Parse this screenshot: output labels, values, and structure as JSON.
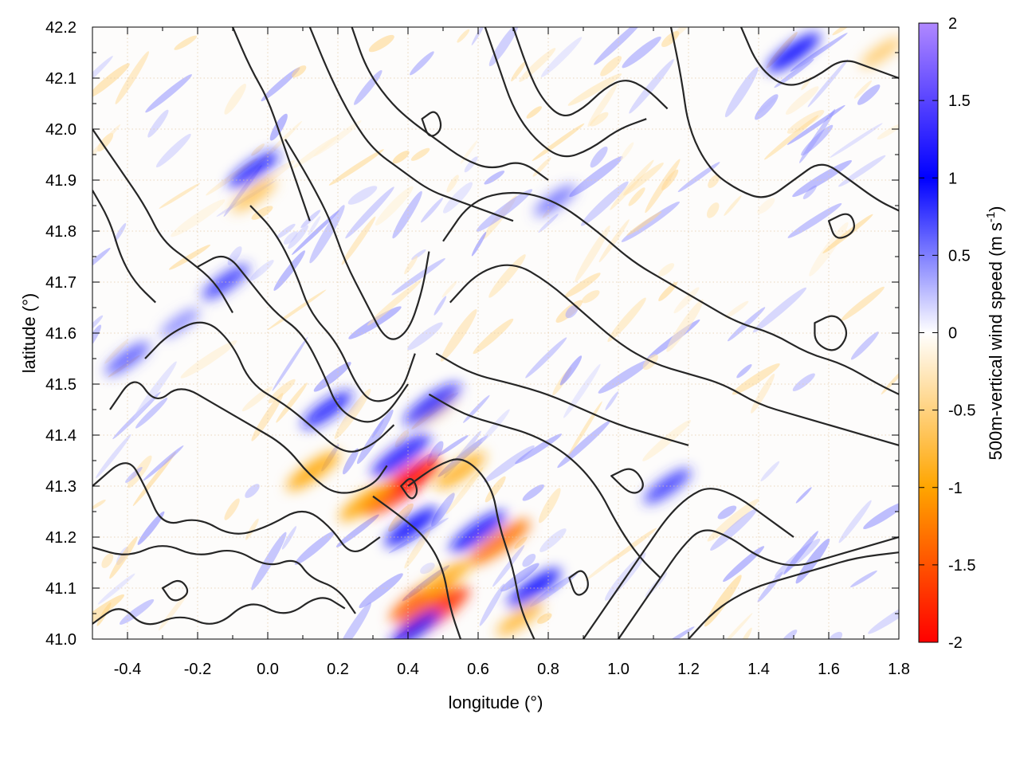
{
  "chart_data": {
    "type": "heatmap",
    "xlabel": "longitude (°)",
    "ylabel": "latitude (°)",
    "colorbar_label": "500m-vertical wind speed (m s",
    "colorbar_unit_sup": "-1",
    "colorbar_label_end": ")",
    "xlim": [
      -0.5,
      1.8
    ],
    "ylim": [
      41.0,
      42.2
    ],
    "xticks": [
      -0.4,
      -0.2,
      0.0,
      0.2,
      0.4,
      0.6,
      0.8,
      1.0,
      1.2,
      1.4,
      1.6,
      1.8
    ],
    "xtick_labels": [
      "-0.4",
      "-0.2",
      "0.0",
      "0.2",
      "0.4",
      "0.6",
      "0.8",
      "1.0",
      "1.2",
      "1.4",
      "1.6",
      "1.8"
    ],
    "yticks": [
      41.0,
      41.1,
      41.2,
      41.3,
      41.4,
      41.5,
      41.6,
      41.7,
      41.8,
      41.9,
      42.0,
      42.1,
      42.2
    ],
    "ytick_labels": [
      "41.0",
      "41.1",
      "41.2",
      "41.3",
      "41.4",
      "41.5",
      "41.6",
      "41.7",
      "41.8",
      "41.9",
      "42.0",
      "42.1",
      "42.2"
    ],
    "colorbar_range": [
      -2,
      2
    ],
    "colorbar_ticks": [
      -2,
      -1.5,
      -1,
      -0.5,
      0,
      0.5,
      1,
      1.5,
      2
    ],
    "colorbar_tick_labels": [
      "-2",
      "-1.5",
      "-1",
      "-0.5",
      "0",
      "0.5",
      "1",
      "1.5",
      "2"
    ],
    "colormap": [
      {
        "value": -2,
        "color": "#ff0000"
      },
      {
        "value": -1,
        "color": "#ffa500"
      },
      {
        "value": 0,
        "color": "#ffffff"
      },
      {
        "value": 1,
        "color": "#0000ff"
      },
      {
        "value": 2,
        "color": "#b088ff"
      }
    ],
    "grid": true,
    "wind_features": [
      {
        "lon": 0.38,
        "lat": 41.3,
        "w": -1.9
      },
      {
        "lon": 0.47,
        "lat": 41.05,
        "w": -1.7
      },
      {
        "lon": 0.44,
        "lat": 41.08,
        "w": -1.4
      },
      {
        "lon": 0.66,
        "lat": 41.19,
        "w": -1.3
      },
      {
        "lon": 0.13,
        "lat": 41.33,
        "w": -1.0
      },
      {
        "lon": 0.28,
        "lat": 41.27,
        "w": -1.0
      },
      {
        "lon": 0.55,
        "lat": 41.33,
        "w": -0.9
      },
      {
        "lon": 0.51,
        "lat": 41.12,
        "w": -0.9
      },
      {
        "lon": -0.04,
        "lat": 41.87,
        "w": -0.7
      },
      {
        "lon": 0.48,
        "lat": 41.45,
        "w": -0.6
      },
      {
        "lon": 0.72,
        "lat": 41.04,
        "w": -0.8
      },
      {
        "lon": 1.75,
        "lat": 42.15,
        "w": -0.6
      },
      {
        "lon": 0.38,
        "lat": 41.36,
        "w": 1.2
      },
      {
        "lon": 0.47,
        "lat": 41.46,
        "w": 1.1
      },
      {
        "lon": 0.6,
        "lat": 41.21,
        "w": 1.1
      },
      {
        "lon": 0.76,
        "lat": 41.1,
        "w": 1.0
      },
      {
        "lon": 0.41,
        "lat": 41.22,
        "w": 1.0
      },
      {
        "lon": 0.17,
        "lat": 41.45,
        "w": 0.9
      },
      {
        "lon": 0.42,
        "lat": 41.02,
        "w": 0.9
      },
      {
        "lon": -0.04,
        "lat": 41.92,
        "w": 0.9
      },
      {
        "lon": 1.14,
        "lat": 41.3,
        "w": 0.8
      },
      {
        "lon": 1.5,
        "lat": 42.15,
        "w": 1.0
      },
      {
        "lon": -0.12,
        "lat": 41.7,
        "w": 0.8
      },
      {
        "lon": -0.25,
        "lat": 41.62,
        "w": 0.5
      },
      {
        "lon": -0.4,
        "lat": 41.55,
        "w": 0.7
      },
      {
        "lon": 0.82,
        "lat": 41.86,
        "w": 0.6
      }
    ],
    "contour_lines": [
      [
        [
          -0.5,
          41.03
        ],
        [
          -0.42,
          41.07
        ],
        [
          -0.35,
          41.02
        ],
        [
          -0.25,
          41.05
        ],
        [
          -0.15,
          41.02
        ],
        [
          -0.05,
          41.08
        ],
        [
          0.05,
          41.04
        ],
        [
          0.15,
          41.09
        ],
        [
          0.22,
          41.06
        ]
      ],
      [
        [
          -0.5,
          41.18
        ],
        [
          -0.4,
          41.16
        ],
        [
          -0.3,
          41.19
        ],
        [
          -0.2,
          41.16
        ],
        [
          -0.1,
          41.18
        ],
        [
          0.0,
          41.14
        ],
        [
          0.08,
          41.16
        ],
        [
          0.12,
          41.12
        ],
        [
          0.2,
          41.1
        ],
        [
          0.25,
          41.05
        ]
      ],
      [
        [
          -0.5,
          41.3
        ],
        [
          -0.4,
          41.36
        ],
        [
          -0.35,
          41.3
        ],
        [
          -0.3,
          41.22
        ],
        [
          -0.2,
          41.24
        ],
        [
          -0.1,
          41.2
        ],
        [
          0.0,
          41.22
        ],
        [
          0.1,
          41.26
        ],
        [
          0.18,
          41.22
        ],
        [
          0.24,
          41.16
        ],
        [
          0.32,
          41.2
        ]
      ],
      [
        [
          -0.45,
          41.45
        ],
        [
          -0.38,
          41.52
        ],
        [
          -0.32,
          41.46
        ],
        [
          -0.25,
          41.5
        ],
        [
          -0.15,
          41.46
        ],
        [
          -0.05,
          41.42
        ],
        [
          0.05,
          41.38
        ],
        [
          0.12,
          41.32
        ],
        [
          0.2,
          41.28
        ],
        [
          0.3,
          41.3
        ],
        [
          0.34,
          41.34
        ]
      ],
      [
        [
          -0.35,
          41.55
        ],
        [
          -0.28,
          41.6
        ],
        [
          -0.18,
          41.63
        ],
        [
          -0.1,
          41.58
        ],
        [
          -0.05,
          41.5
        ],
        [
          0.05,
          41.46
        ],
        [
          0.12,
          41.42
        ],
        [
          0.22,
          41.36
        ],
        [
          0.3,
          41.38
        ],
        [
          0.36,
          41.42
        ]
      ],
      [
        [
          -0.2,
          41.73
        ],
        [
          -0.12,
          41.76
        ],
        [
          -0.05,
          41.7
        ],
        [
          0.02,
          41.64
        ],
        [
          0.1,
          41.6
        ],
        [
          0.16,
          41.52
        ],
        [
          0.2,
          41.45
        ],
        [
          0.28,
          41.42
        ],
        [
          0.34,
          41.44
        ],
        [
          0.4,
          41.5
        ]
      ],
      [
        [
          -0.05,
          41.85
        ],
        [
          0.02,
          41.8
        ],
        [
          0.08,
          41.72
        ],
        [
          0.12,
          41.64
        ],
        [
          0.2,
          41.58
        ],
        [
          0.25,
          41.5
        ],
        [
          0.3,
          41.46
        ],
        [
          0.38,
          41.48
        ],
        [
          0.42,
          41.56
        ]
      ],
      [
        [
          0.05,
          41.98
        ],
        [
          0.12,
          41.9
        ],
        [
          0.18,
          41.82
        ],
        [
          0.22,
          41.74
        ],
        [
          0.28,
          41.66
        ],
        [
          0.34,
          41.58
        ],
        [
          0.4,
          41.6
        ],
        [
          0.44,
          41.68
        ],
        [
          0.46,
          41.76
        ]
      ],
      [
        [
          -0.5,
          42.0
        ],
        [
          -0.42,
          41.92
        ],
        [
          -0.35,
          41.85
        ],
        [
          -0.3,
          41.78
        ],
        [
          -0.22,
          41.74
        ],
        [
          -0.15,
          41.7
        ],
        [
          -0.1,
          41.64
        ]
      ],
      [
        [
          -0.5,
          41.88
        ],
        [
          -0.45,
          41.82
        ],
        [
          -0.42,
          41.75
        ],
        [
          -0.38,
          41.7
        ],
        [
          -0.32,
          41.66
        ]
      ],
      [
        [
          0.3,
          41.28
        ],
        [
          0.38,
          41.24
        ],
        [
          0.45,
          41.2
        ],
        [
          0.5,
          41.14
        ],
        [
          0.52,
          41.06
        ],
        [
          0.55,
          41.0
        ]
      ],
      [
        [
          0.4,
          41.3
        ],
        [
          0.48,
          41.34
        ],
        [
          0.56,
          41.36
        ],
        [
          0.64,
          41.3
        ],
        [
          0.66,
          41.22
        ],
        [
          0.7,
          41.14
        ],
        [
          0.72,
          41.06
        ],
        [
          0.76,
          41.0
        ]
      ],
      [
        [
          0.46,
          41.48
        ],
        [
          0.56,
          41.44
        ],
        [
          0.66,
          41.42
        ],
        [
          0.76,
          41.4
        ],
        [
          0.86,
          41.36
        ],
        [
          0.94,
          41.3
        ],
        [
          1.0,
          41.22
        ],
        [
          1.06,
          41.16
        ],
        [
          1.12,
          41.12
        ]
      ],
      [
        [
          0.48,
          41.56
        ],
        [
          0.58,
          41.52
        ],
        [
          0.7,
          41.5
        ],
        [
          0.8,
          41.48
        ],
        [
          0.9,
          41.45
        ],
        [
          1.0,
          41.42
        ],
        [
          1.1,
          41.4
        ],
        [
          1.2,
          41.38
        ]
      ],
      [
        [
          0.52,
          41.66
        ],
        [
          0.6,
          41.72
        ],
        [
          0.7,
          41.74
        ],
        [
          0.8,
          41.7
        ],
        [
          0.9,
          41.64
        ],
        [
          1.0,
          41.58
        ],
        [
          1.1,
          41.54
        ],
        [
          1.2,
          41.52
        ],
        [
          1.3,
          41.5
        ],
        [
          1.4,
          41.46
        ],
        [
          1.5,
          41.44
        ],
        [
          1.6,
          41.42
        ],
        [
          1.7,
          41.4
        ],
        [
          1.8,
          41.38
        ]
      ],
      [
        [
          0.5,
          41.78
        ],
        [
          0.58,
          41.86
        ],
        [
          0.7,
          41.88
        ],
        [
          0.82,
          41.86
        ],
        [
          0.94,
          41.8
        ],
        [
          1.04,
          41.74
        ],
        [
          1.14,
          41.7
        ],
        [
          1.24,
          41.66
        ],
        [
          1.34,
          41.62
        ],
        [
          1.44,
          41.6
        ],
        [
          1.54,
          41.56
        ],
        [
          1.64,
          41.54
        ],
        [
          1.74,
          41.5
        ],
        [
          1.8,
          41.48
        ]
      ],
      [
        [
          0.9,
          41.0
        ],
        [
          0.96,
          41.06
        ],
        [
          1.02,
          41.12
        ],
        [
          1.08,
          41.18
        ],
        [
          1.14,
          41.24
        ],
        [
          1.2,
          41.28
        ],
        [
          1.26,
          41.3
        ],
        [
          1.34,
          41.28
        ],
        [
          1.42,
          41.24
        ],
        [
          1.5,
          41.2
        ]
      ],
      [
        [
          1.0,
          41.0
        ],
        [
          1.06,
          41.06
        ],
        [
          1.12,
          41.12
        ],
        [
          1.18,
          41.18
        ],
        [
          1.24,
          41.22
        ],
        [
          1.32,
          41.2
        ],
        [
          1.4,
          41.16
        ],
        [
          1.5,
          41.14
        ],
        [
          1.6,
          41.16
        ],
        [
          1.7,
          41.18
        ],
        [
          1.8,
          41.2
        ]
      ],
      [
        [
          1.2,
          41.0
        ],
        [
          1.28,
          41.06
        ],
        [
          1.38,
          41.1
        ],
        [
          1.48,
          41.12
        ],
        [
          1.58,
          41.14
        ],
        [
          1.68,
          41.16
        ],
        [
          1.8,
          41.17
        ]
      ],
      [
        [
          1.15,
          42.2
        ],
        [
          1.18,
          42.1
        ],
        [
          1.2,
          42.0
        ],
        [
          1.26,
          41.92
        ],
        [
          1.34,
          41.88
        ],
        [
          1.42,
          41.86
        ],
        [
          1.5,
          41.9
        ],
        [
          1.58,
          41.94
        ],
        [
          1.66,
          41.9
        ],
        [
          1.74,
          41.86
        ],
        [
          1.8,
          41.84
        ]
      ],
      [
        [
          0.7,
          42.2
        ],
        [
          0.74,
          42.12
        ],
        [
          0.78,
          42.06
        ],
        [
          0.84,
          42.02
        ],
        [
          0.9,
          42.04
        ],
        [
          0.96,
          42.08
        ],
        [
          1.02,
          42.1
        ],
        [
          1.08,
          42.08
        ],
        [
          1.14,
          42.04
        ]
      ],
      [
        [
          0.62,
          42.2
        ],
        [
          0.66,
          42.12
        ],
        [
          0.7,
          42.04
        ],
        [
          0.76,
          41.98
        ],
        [
          0.84,
          41.94
        ],
        [
          0.92,
          41.96
        ],
        [
          1.0,
          42.0
        ],
        [
          1.08,
          42.02
        ]
      ],
      [
        [
          0.24,
          42.2
        ],
        [
          0.28,
          42.12
        ],
        [
          0.34,
          42.06
        ],
        [
          0.4,
          42.02
        ],
        [
          0.48,
          41.98
        ],
        [
          0.56,
          41.94
        ],
        [
          0.64,
          41.92
        ],
        [
          0.72,
          41.94
        ],
        [
          0.8,
          41.9
        ]
      ],
      [
        [
          0.12,
          42.2
        ],
        [
          0.18,
          42.1
        ],
        [
          0.24,
          42.02
        ],
        [
          0.3,
          41.96
        ],
        [
          0.38,
          41.92
        ],
        [
          0.46,
          41.88
        ],
        [
          0.54,
          41.86
        ],
        [
          0.62,
          41.84
        ],
        [
          0.7,
          41.82
        ]
      ],
      [
        [
          -0.1,
          42.2
        ],
        [
          -0.05,
          42.12
        ],
        [
          0.0,
          42.06
        ],
        [
          0.04,
          41.98
        ],
        [
          0.08,
          41.9
        ],
        [
          0.12,
          41.82
        ]
      ],
      [
        [
          1.35,
          42.2
        ],
        [
          1.4,
          42.12
        ],
        [
          1.48,
          42.08
        ],
        [
          1.56,
          42.1
        ],
        [
          1.64,
          42.14
        ],
        [
          1.72,
          42.12
        ],
        [
          1.8,
          42.1
        ]
      ]
    ],
    "closed_contours": [
      [
        [
          0.38,
          41.3
        ],
        [
          0.41,
          41.32
        ],
        [
          0.43,
          41.29
        ],
        [
          0.41,
          41.27
        ],
        [
          0.38,
          41.3
        ]
      ],
      [
        [
          -0.3,
          41.1
        ],
        [
          -0.25,
          41.12
        ],
        [
          -0.22,
          41.09
        ],
        [
          -0.27,
          41.07
        ],
        [
          -0.3,
          41.1
        ]
      ],
      [
        [
          0.86,
          41.12
        ],
        [
          0.9,
          41.14
        ],
        [
          0.92,
          41.1
        ],
        [
          0.88,
          41.08
        ],
        [
          0.86,
          41.12
        ]
      ],
      [
        [
          1.56,
          41.62
        ],
        [
          1.62,
          41.64
        ],
        [
          1.66,
          41.6
        ],
        [
          1.62,
          41.56
        ],
        [
          1.56,
          41.58
        ],
        [
          1.56,
          41.62
        ]
      ],
      [
        [
          0.98,
          41.32
        ],
        [
          1.04,
          41.34
        ],
        [
          1.08,
          41.3
        ],
        [
          1.04,
          41.28
        ],
        [
          0.98,
          41.32
        ]
      ],
      [
        [
          0.44,
          42.02
        ],
        [
          0.48,
          42.04
        ],
        [
          0.5,
          42.0
        ],
        [
          0.46,
          41.98
        ],
        [
          0.44,
          42.02
        ]
      ],
      [
        [
          1.6,
          41.82
        ],
        [
          1.66,
          41.84
        ],
        [
          1.68,
          41.8
        ],
        [
          1.62,
          41.78
        ],
        [
          1.6,
          41.82
        ]
      ]
    ]
  }
}
